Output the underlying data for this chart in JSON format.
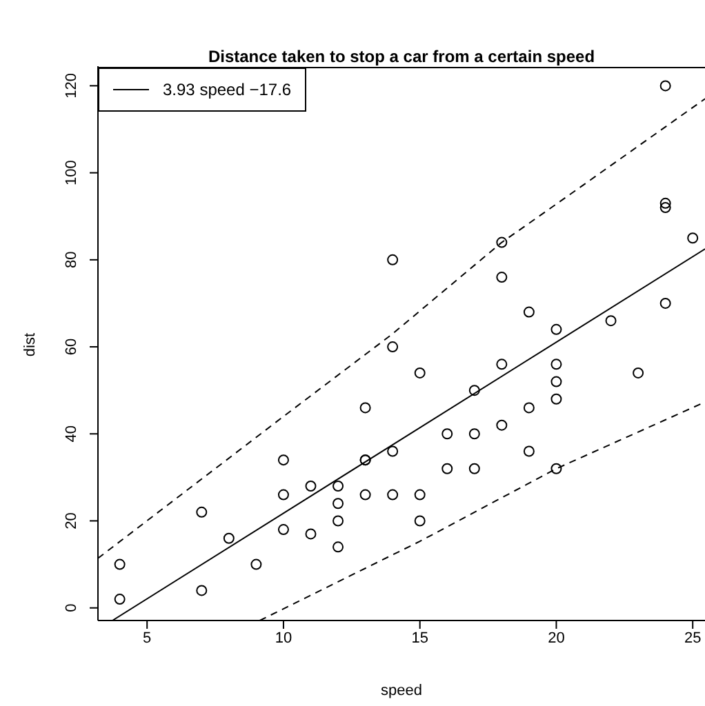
{
  "chart_data": {
    "type": "scatter",
    "title": "Distance taken to stop a car from a certain speed",
    "xlabel": "speed",
    "ylabel": "dist",
    "xlim": [
      3.2,
      25.45
    ],
    "ylim": [
      -2.9,
      124.5
    ],
    "xticks": [
      5,
      10,
      15,
      20,
      25
    ],
    "yticks": [
      0,
      20,
      40,
      60,
      80,
      100,
      120
    ],
    "legend": "top left",
    "series": [
      {
        "color": "#000000",
        "marker": "circle",
        "x": [
          4,
          4,
          7,
          7,
          8,
          9,
          10,
          10,
          10,
          11,
          11,
          12,
          12,
          12,
          12,
          13,
          13,
          13,
          13,
          14,
          14,
          14,
          14,
          15,
          15,
          15,
          16,
          16,
          17,
          17,
          17,
          18,
          18,
          18,
          18,
          19,
          19,
          19,
          20,
          20,
          20,
          20,
          20,
          22,
          23,
          24,
          24,
          24,
          24,
          25
        ],
        "values": [
          2,
          10,
          4,
          22,
          16,
          10,
          18,
          26,
          34,
          17,
          28,
          14,
          20,
          24,
          28,
          26,
          34,
          34,
          46,
          26,
          36,
          60,
          80,
          20,
          26,
          54,
          32,
          40,
          32,
          40,
          50,
          42,
          56,
          76,
          84,
          36,
          46,
          68,
          32,
          48,
          52,
          56,
          64,
          66,
          54,
          70,
          92,
          93,
          120,
          85
        ]
      },
      {
        "type": "line",
        "name": "3.93 speed −17.6",
        "color": "#000000",
        "marker": "none",
        "line_style": "solid",
        "x": [
          3.73,
          25.45
        ],
        "values": [
          -2.9,
          82.5
        ]
      },
      {
        "type": "line",
        "color": "#000000",
        "marker": "none",
        "line_style": "dashed",
        "x": [
          3.2,
          10,
          14,
          18,
          20,
          25.45
        ],
        "values": [
          11.4,
          44,
          63,
          84,
          92.8,
          117
        ]
      },
      {
        "type": "line",
        "color": "#000000",
        "marker": "none",
        "line_style": "dashed",
        "x": [
          9.13,
          15,
          20,
          25.45
        ],
        "values": [
          -2.9,
          15.3,
          32,
          47.3
        ]
      }
    ]
  }
}
